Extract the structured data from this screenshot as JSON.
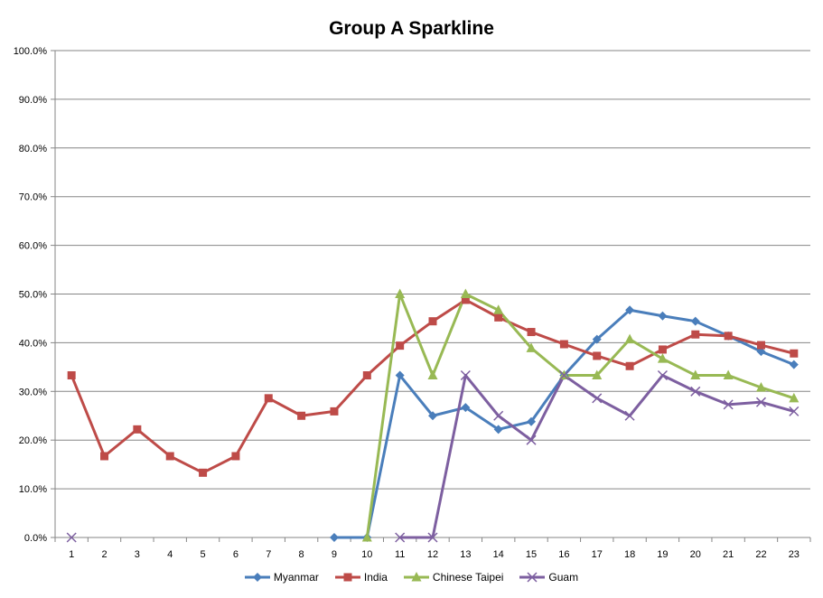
{
  "chart_data": {
    "type": "line",
    "title": "Group A Sparkline",
    "xlabel": "",
    "ylabel": "",
    "x": [
      1,
      2,
      3,
      4,
      5,
      6,
      7,
      8,
      9,
      10,
      11,
      12,
      13,
      14,
      15,
      16,
      17,
      18,
      19,
      20,
      21,
      22,
      23
    ],
    "y_ticks": [
      "0.0%",
      "10.0%",
      "20.0%",
      "30.0%",
      "40.0%",
      "50.0%",
      "60.0%",
      "70.0%",
      "80.0%",
      "90.0%",
      "100.0%"
    ],
    "ylim": [
      0,
      1
    ],
    "grid": true,
    "legend_position": "bottom",
    "series": [
      {
        "name": "Myanmar",
        "color": "#4a7ebb",
        "marker": "diamond",
        "values": [
          null,
          null,
          null,
          null,
          null,
          null,
          null,
          null,
          0,
          0,
          0.333,
          0.25,
          0.267,
          0.222,
          0.238,
          0.333,
          0.407,
          0.467,
          0.455,
          0.444,
          0.414,
          0.382,
          0.355
        ]
      },
      {
        "name": "India",
        "color": "#be4b48",
        "marker": "square",
        "values": [
          0.333,
          0.167,
          0.222,
          0.167,
          0.133,
          0.167,
          0.286,
          0.25,
          0.259,
          0.333,
          0.394,
          0.444,
          0.488,
          0.452,
          0.422,
          0.397,
          0.373,
          0.352,
          0.386,
          0.417,
          0.414,
          0.395,
          0.378
        ]
      },
      {
        "name": "Chinese Taipei",
        "color": "#98b954",
        "marker": "triangle",
        "values": [
          null,
          null,
          null,
          null,
          null,
          null,
          null,
          null,
          null,
          0,
          0.5,
          0.333,
          0.5,
          0.467,
          0.389,
          0.333,
          0.333,
          0.407,
          0.367,
          0.333,
          0.333,
          0.308,
          0.286
        ]
      },
      {
        "name": "Guam",
        "color": "#7d5fa0",
        "marker": "x",
        "values": [
          0,
          null,
          null,
          null,
          null,
          null,
          null,
          null,
          null,
          null,
          0,
          0,
          0.333,
          0.25,
          0.2,
          0.333,
          0.286,
          0.25,
          0.333,
          0.3,
          0.273,
          0.278,
          0.259
        ]
      }
    ]
  }
}
